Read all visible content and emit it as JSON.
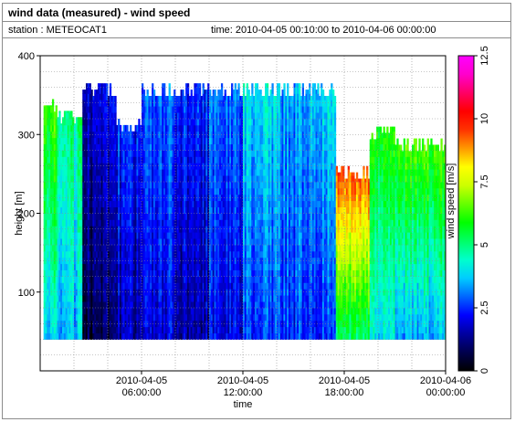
{
  "header": {
    "title": "wind data (measured) - wind speed",
    "station": "station : METEOCAT1",
    "time_range": "time: 2010-04-05 00:10:00 to 2010-04-06 00:00:00"
  },
  "colors": {
    "colormap": [
      "#000000",
      "#00004d",
      "#0000a0",
      "#0000ff",
      "#0066ff",
      "#00ccff",
      "#00ffcc",
      "#00ff66",
      "#00ff00",
      "#66ff00",
      "#ccff00",
      "#ffff00",
      "#ff9900",
      "#ff3300",
      "#ff0000",
      "#ff0066",
      "#ff00cc",
      "#ff00ff"
    ],
    "grid": "#8c8c8c"
  },
  "chart_data": {
    "type": "heatmap",
    "title": "",
    "xlabel": "time",
    "ylabel": "height [m]",
    "colorbar_label": "wind speed [m/s]",
    "x_start": "2010-04-05 00:00:00",
    "x_end": "2010-04-06 00:00:00",
    "xlim_hours": [
      0,
      24
    ],
    "x_ticks": [
      {
        "hour": 6,
        "line1": "2010-04-05",
        "line2": "06:00:00"
      },
      {
        "hour": 12,
        "line1": "2010-04-05",
        "line2": "12:00:00"
      },
      {
        "hour": 18,
        "line1": "2010-04-05",
        "line2": "18:00:00"
      },
      {
        "hour": 24,
        "line1": "2010-04-06",
        "line2": "00:00:00"
      }
    ],
    "ylim": [
      0,
      400
    ],
    "y_ticks": [
      "100",
      "200",
      "300",
      "400"
    ],
    "y_tick_values": [
      100,
      200,
      300,
      400
    ],
    "colorbar_range": [
      0,
      12.5
    ],
    "colorbar_ticks": [
      "0",
      "2.5",
      "5",
      "7.5",
      "10",
      "12.5"
    ],
    "colorbar_tick_values": [
      0,
      2.5,
      5,
      7.5,
      10,
      12.5
    ],
    "height_range_m": [
      40,
      365
    ],
    "grid": true,
    "time_segments": [
      {
        "hours": [
          0.2,
          1.0
        ],
        "top_m": 345,
        "speed_low": 4.0,
        "speed_high": 6.5
      },
      {
        "hours": [
          1.0,
          2.5
        ],
        "top_m": 330,
        "speed_low": 3.5,
        "speed_high": 5.0
      },
      {
        "hours": [
          2.5,
          4.5
        ],
        "top_m": 365,
        "speed_low": 0.8,
        "speed_high": 2.0
      },
      {
        "hours": [
          4.5,
          6.0
        ],
        "top_m": 320,
        "speed_low": 1.5,
        "speed_high": 2.5
      },
      {
        "hours": [
          6.0,
          8.0
        ],
        "top_m": 365,
        "speed_low": 2.0,
        "speed_high": 3.0
      },
      {
        "hours": [
          8.0,
          10.0
        ],
        "top_m": 365,
        "speed_low": 1.5,
        "speed_high": 2.5
      },
      {
        "hours": [
          10.0,
          12.0
        ],
        "top_m": 365,
        "speed_low": 2.0,
        "speed_high": 3.0
      },
      {
        "hours": [
          12.0,
          14.0
        ],
        "top_m": 365,
        "speed_low": 2.5,
        "speed_high": 4.0
      },
      {
        "hours": [
          14.0,
          16.0
        ],
        "top_m": 365,
        "speed_low": 2.5,
        "speed_high": 3.5
      },
      {
        "hours": [
          16.0,
          17.5
        ],
        "top_m": 365,
        "speed_low": 2.5,
        "speed_high": 4.0
      },
      {
        "hours": [
          17.5,
          19.5
        ],
        "top_m": 260,
        "speed_low": 5.0,
        "speed_high": 9.5
      },
      {
        "hours": [
          19.5,
          21.0
        ],
        "top_m": 310,
        "speed_low": 4.0,
        "speed_high": 6.0
      },
      {
        "hours": [
          21.0,
          24.0
        ],
        "top_m": 295,
        "speed_low": 3.5,
        "speed_high": 6.5
      }
    ]
  }
}
